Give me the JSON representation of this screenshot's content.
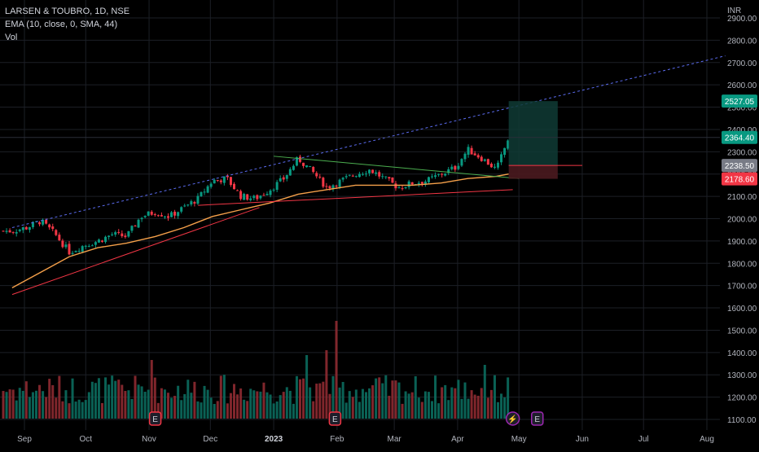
{
  "header": {
    "title": "LARSEN & TOUBRO, 1D, NSE",
    "indicator": "EMA (10, close, 0, SMA, 44)",
    "volume_label": "Vol"
  },
  "currency": "INR",
  "chart_data": {
    "type": "candlestick",
    "symbol": "LARSEN & TOUBRO",
    "interval": "1D",
    "exchange": "NSE",
    "currency": "INR",
    "grid": true,
    "ylim": [
      1080,
      2920
    ],
    "ytick_labels": [
      "1100.00",
      "1200.00",
      "1300.00",
      "1400.00",
      "1500.00",
      "1600.00",
      "1700.00",
      "1800.00",
      "1900.00",
      "2000.00",
      "2100.00",
      "2200.00",
      "2300.00",
      "2400.00",
      "2500.00",
      "2600.00",
      "2700.00",
      "2800.00",
      "2900.00"
    ],
    "xtick_labels": [
      "Sep",
      "Oct",
      "Nov",
      "Dec",
      "2023",
      "Feb",
      "Mar",
      "Apr",
      "May",
      "Jun",
      "Jul",
      "Aug"
    ],
    "price_tags": [
      {
        "label": "2527.05",
        "value": 2527.05,
        "color": "#089981"
      },
      {
        "label": "2364.40",
        "value": 2364.4,
        "color": "#089981"
      },
      {
        "label": "2238.50",
        "value": 2238.5,
        "color": "#787b86"
      },
      {
        "label": "2178.60",
        "value": 2178.6,
        "color": "#f23645"
      }
    ],
    "close_path": [
      [
        "2022-08-26",
        1945
      ],
      [
        "2022-09-02",
        1960
      ],
      [
        "2022-09-09",
        1990
      ],
      [
        "2022-09-16",
        1930
      ],
      [
        "2022-09-23",
        1850
      ],
      [
        "2022-09-30",
        1880
      ],
      [
        "2022-10-07",
        1900
      ],
      [
        "2022-10-14",
        1930
      ],
      [
        "2022-10-21",
        1920
      ],
      [
        "2022-10-28",
        2010
      ],
      [
        "2022-11-04",
        2030
      ],
      [
        "2022-11-11",
        2010
      ],
      [
        "2022-11-18",
        2050
      ],
      [
        "2022-11-25",
        2090
      ],
      [
        "2022-12-02",
        2170
      ],
      [
        "2022-12-09",
        2180
      ],
      [
        "2022-12-16",
        2100
      ],
      [
        "2022-12-23",
        2090
      ],
      [
        "2022-12-30",
        2130
      ],
      [
        "2023-01-06",
        2180
      ],
      [
        "2023-01-13",
        2270
      ],
      [
        "2023-01-20",
        2210
      ],
      [
        "2023-01-27",
        2140
      ],
      [
        "2023-02-03",
        2170
      ],
      [
        "2023-02-10",
        2200
      ],
      [
        "2023-02-17",
        2220
      ],
      [
        "2023-02-24",
        2180
      ],
      [
        "2023-03-03",
        2140
      ],
      [
        "2023-03-10",
        2160
      ],
      [
        "2023-03-17",
        2170
      ],
      [
        "2023-03-24",
        2200
      ],
      [
        "2023-03-31",
        2230
      ],
      [
        "2023-04-06",
        2310
      ],
      [
        "2023-04-13",
        2270
      ],
      [
        "2023-04-20",
        2220
      ],
      [
        "2023-04-26",
        2364.4
      ]
    ],
    "ema_path": [
      [
        "2022-08-26",
        1690
      ],
      [
        "2022-09-09",
        1760
      ],
      [
        "2022-09-23",
        1830
      ],
      [
        "2022-10-07",
        1870
      ],
      [
        "2022-10-21",
        1890
      ],
      [
        "2022-11-04",
        1920
      ],
      [
        "2022-11-18",
        1960
      ],
      [
        "2022-12-02",
        2010
      ],
      [
        "2022-12-16",
        2040
      ],
      [
        "2022-12-30",
        2070
      ],
      [
        "2023-01-13",
        2110
      ],
      [
        "2023-01-27",
        2130
      ],
      [
        "2023-02-10",
        2150
      ],
      [
        "2023-02-24",
        2150
      ],
      [
        "2023-03-10",
        2150
      ],
      [
        "2023-03-24",
        2160
      ],
      [
        "2023-04-06",
        2180
      ],
      [
        "2023-04-20",
        2190
      ],
      [
        "2023-04-26",
        2200
      ]
    ],
    "trendlines": [
      {
        "name": "upper channel",
        "style": "dotted",
        "color": "#5b6cf0",
        "points": [
          [
            "2022-08-26",
            1960
          ],
          [
            "2023-08-10",
            2730
          ]
        ]
      },
      {
        "name": "rising support",
        "style": "solid",
        "color": "#f23645",
        "points": [
          [
            "2022-08-26",
            1660
          ],
          [
            "2022-12-25",
            2050
          ]
        ]
      },
      {
        "name": "triangle support",
        "style": "solid",
        "color": "#f23645",
        "points": [
          [
            "2022-11-25",
            2060
          ],
          [
            "2023-04-28",
            2130
          ]
        ]
      },
      {
        "name": "triangle resistance",
        "style": "solid",
        "color": "#4caf50",
        "points": [
          [
            "2023-01-01",
            2280
          ],
          [
            "2023-05-01",
            2180
          ]
        ]
      }
    ],
    "long_position": {
      "start": "2023-04-26",
      "end": "2023-05-20",
      "entry": 2238.5,
      "target": 2527.05,
      "stop": 2178.6,
      "horizontal_line_end": "2023-06-01"
    },
    "volume_style": "histogram, green up / red down",
    "volume_max_value": 1.0,
    "volume_spikes": [
      {
        "date": "2022-11-03",
        "relative": 0.6
      },
      {
        "date": "2023-01-17",
        "relative": 0.65
      },
      {
        "date": "2023-01-27",
        "relative": 0.7
      },
      {
        "date": "2023-01-31",
        "relative": 1.0
      },
      {
        "date": "2023-04-14",
        "relative": 0.55
      }
    ],
    "events": [
      {
        "date": "2022-11-04",
        "label": "E",
        "kind": "earnings"
      },
      {
        "date": "2023-01-31",
        "label": "E",
        "kind": "earnings"
      },
      {
        "date": "2023-04-28",
        "label": "⚡",
        "kind": "dividend"
      },
      {
        "date": "2023-05-10",
        "label": "E",
        "kind": "earnings-upcoming"
      }
    ]
  },
  "colors": {
    "background": "#000000",
    "grid": "#1c1f26",
    "up": "#089981",
    "down": "#f23645",
    "ema": "#f5a04a",
    "text": "#b2b5be"
  }
}
